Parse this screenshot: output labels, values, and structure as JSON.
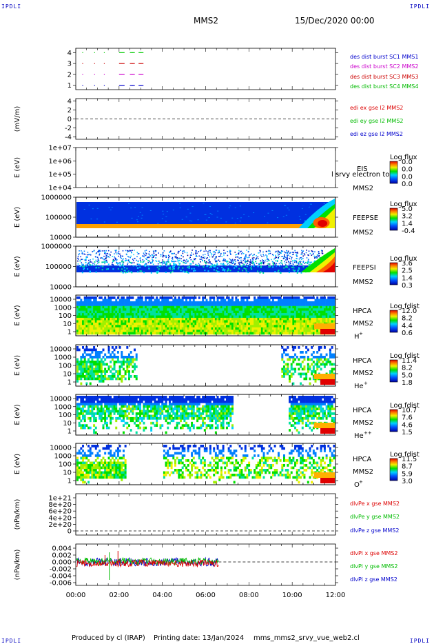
{
  "page": {
    "corner_label": "IPDLI",
    "mission": "MMS2",
    "datetime": "15/Dec/2020 00:00",
    "footer_produced": "Produced by cl (IRAP)",
    "footer_printing": "Printing date: 13/Jan/2024",
    "footer_file": "mms_mms2_srvy_vue_web2.cl"
  },
  "colors": {
    "mms1": "#0000cc",
    "mms2": "#cc00cc",
    "mms3": "#cc0000",
    "mms4": "#00cc00",
    "x_comp": "#dd0000",
    "y_comp": "#00bb00",
    "z_comp": "#0000cc"
  },
  "chart_data": [
    {
      "type": "scatter",
      "id": "des-burst",
      "yticks": [
        "1",
        "2",
        "3",
        "4"
      ],
      "ylim": [
        0.6,
        4.4
      ],
      "series": [
        {
          "name": "des dist burst SC1 MMS1",
          "color": "#0000cc",
          "y": 1,
          "x_hours": [
            0.3,
            0.85,
            1.3,
            2.0,
            2.5,
            2.6,
            2.9,
            3.0
          ]
        },
        {
          "name": "des dist burst SC2 MMS2",
          "color": "#cc00cc",
          "y": 2,
          "x_hours": [
            0.3,
            0.85,
            1.3,
            2.0,
            2.5,
            2.6,
            2.9,
            3.0
          ]
        },
        {
          "name": "des dist burst SC3 MMS3",
          "color": "#cc0000",
          "y": 3,
          "x_hours": [
            0.3,
            0.85,
            1.3,
            2.0,
            2.5,
            2.6,
            2.9,
            3.0
          ]
        },
        {
          "name": "des dist burst SC4 MMS4",
          "color": "#00cc00",
          "y": 4,
          "x_hours": [
            0.3,
            0.85,
            1.3,
            2.0,
            2.5,
            2.6,
            2.9,
            3.0
          ]
        }
      ]
    },
    {
      "type": "line",
      "id": "edi-e",
      "ylabel": "(mV/m)",
      "yticks": [
        "-4",
        "-2",
        "0",
        "2",
        "4"
      ],
      "ylim": [
        -4.5,
        4.5
      ],
      "series": [
        {
          "name": "edi ex gse l2 MMS2",
          "color": "#dd0000"
        },
        {
          "name": "edi ey gse l2 MMS2",
          "color": "#00bb00"
        },
        {
          "name": "edi ez gse l2 MMS2",
          "color": "#0000cc"
        }
      ]
    },
    {
      "type": "heatmap",
      "id": "eis",
      "ylabel": "E (eV)",
      "yticks": [
        "1e+04",
        "1e+05",
        "1e+06",
        "1e+07"
      ],
      "instrument": "EIS",
      "mission": "MMS2",
      "overlay": "l srvy electron to",
      "colorbar_title": "Log flux",
      "colorbar_ticks": [
        "0.0",
        "0.0",
        "0.0",
        "0.0"
      ]
    },
    {
      "type": "heatmap",
      "id": "feepse",
      "ylabel": "E (eV)",
      "yticks": [
        "10000",
        "100000",
        "1000000"
      ],
      "instrument": "FEEPSE",
      "mission": "MMS2",
      "colorbar_title": "Log flux",
      "colorbar_ticks": [
        "5.0",
        "3.2",
        "1.4",
        "-0.4"
      ]
    },
    {
      "type": "heatmap",
      "id": "feepsi",
      "ylabel": "E (eV)",
      "yticks": [
        "10000",
        "100000",
        "1000000"
      ],
      "instrument": "FEEPSI",
      "mission": "MMS2",
      "colorbar_title": "Log flux",
      "colorbar_ticks": [
        "3.6",
        "2.5",
        "1.4",
        "0.3"
      ]
    },
    {
      "type": "heatmap",
      "id": "hpca-h",
      "ylabel": "E (eV)",
      "yticks": [
        "1",
        "10",
        "100",
        "1000",
        "10000"
      ],
      "instrument": "HPCA",
      "mission": "MMS2",
      "species": "H",
      "charge": "+",
      "colorbar_title": "Log fdist",
      "colorbar_ticks": [
        "12.0",
        "8.2",
        "4.4",
        "0.6"
      ]
    },
    {
      "type": "heatmap",
      "id": "hpca-he",
      "ylabel": "E (eV)",
      "yticks": [
        "1",
        "10",
        "100",
        "1000",
        "10000"
      ],
      "instrument": "HPCA",
      "mission": "MMS2",
      "species": "He",
      "charge": "+",
      "colorbar_title": "Log fdist",
      "colorbar_ticks": [
        "11.4",
        "8.2",
        "5.0",
        "1.8"
      ]
    },
    {
      "type": "heatmap",
      "id": "hpca-hepp",
      "ylabel": "E (eV)",
      "yticks": [
        "1",
        "10",
        "100",
        "1000",
        "10000"
      ],
      "instrument": "HPCA",
      "mission": "MMS2",
      "species": "He",
      "charge": "++",
      "colorbar_title": "Log fdist",
      "colorbar_ticks": [
        "10.7",
        "7.6",
        "4.6",
        "1.5"
      ]
    },
    {
      "type": "heatmap",
      "id": "hpca-o",
      "ylabel": "E (eV)",
      "yticks": [
        "1",
        "10",
        "100",
        "1000",
        "10000"
      ],
      "instrument": "HPCA",
      "mission": "MMS2",
      "species": "O",
      "charge": "+",
      "colorbar_title": "Log fdist",
      "colorbar_ticks": [
        "11.5",
        "8.7",
        "5.9",
        "3.0"
      ]
    },
    {
      "type": "line",
      "id": "dpe",
      "ylabel": "(nPa/km)",
      "yticks": [
        "0",
        "2e+20",
        "4e+20",
        "6e+20",
        "8e+20",
        "1e+21"
      ],
      "series": [
        {
          "name": "dlvPe x gse MMS2",
          "color": "#dd0000"
        },
        {
          "name": "dlvPe y gse MMS2",
          "color": "#00bb00"
        },
        {
          "name": "dlvPe z gse MMS2",
          "color": "#0000cc"
        }
      ]
    },
    {
      "type": "line",
      "id": "dpi",
      "ylabel": "(nPa/km)",
      "yticks": [
        "-0.006",
        "-0.004",
        "-0.002",
        "0.000",
        "0.002",
        "0.004"
      ],
      "ylim": [
        -0.0068,
        0.0052
      ],
      "x_end_hours": 6.6,
      "series": [
        {
          "name": "dlvPi x gse MMS2",
          "color": "#dd0000"
        },
        {
          "name": "dlvPi y gse MMS2",
          "color": "#00bb00"
        },
        {
          "name": "dlvPi z gse MMS2",
          "color": "#0000cc"
        }
      ]
    }
  ],
  "xaxis": {
    "ticks": [
      "00:00",
      "02:00",
      "04:00",
      "06:00",
      "08:00",
      "10:00",
      "12:00"
    ],
    "range_hours": [
      0,
      12
    ]
  }
}
